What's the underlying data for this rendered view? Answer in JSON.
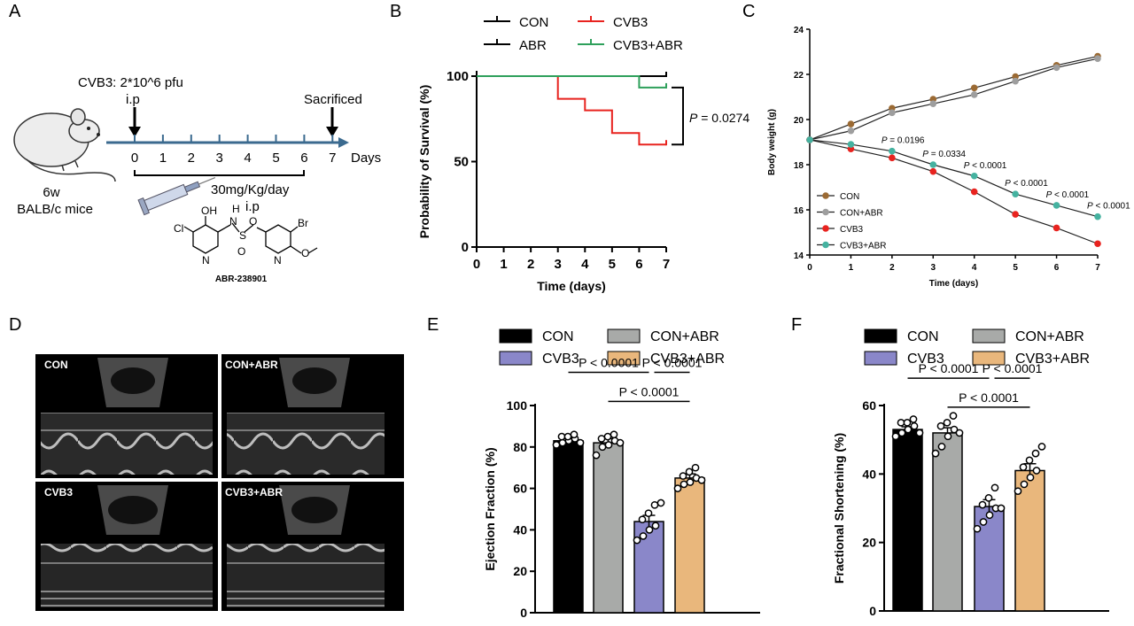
{
  "panel_labels": {
    "A": "A",
    "B": "B",
    "C": "C",
    "D": "D",
    "E": "E",
    "F": "F"
  },
  "panelA": {
    "infection": "CVB3: 2*10^6 pfu",
    "route1": "i.p",
    "sacrificed": "Sacrificed",
    "days_ticks": [
      "0",
      "1",
      "2",
      "3",
      "4",
      "5",
      "6",
      "7"
    ],
    "days_label": "Days",
    "dose": "30mg/Kg/day",
    "route2": "i.p",
    "mouse_age": "6w",
    "mouse_strain": "BALB/c mice",
    "compound_name": "ABR-238901",
    "chem": {
      "oh": "OH",
      "cl": "Cl",
      "n1": "N",
      "h": "H",
      "nh": "N",
      "s": "S",
      "o1": "O",
      "o2": "O",
      "br": "Br",
      "n2": "N",
      "o3": "O"
    }
  },
  "panelB": {
    "chart_data": {
      "type": "line",
      "xlabel": "Time (days)",
      "ylabel": "Probability of Survival (%)",
      "xlim": [
        0,
        7
      ],
      "ylim": [
        0,
        100
      ],
      "xticks": [
        "0",
        "1",
        "2",
        "3",
        "4",
        "5",
        "6",
        "7"
      ],
      "yticks": [
        "0",
        "50",
        "100"
      ],
      "legend": [
        {
          "name": "CON",
          "color": "#000000"
        },
        {
          "name": "CVB3",
          "color": "#e8231f"
        },
        {
          "name": "ABR",
          "color": "#000000"
        },
        {
          "name": "CVB3+ABR",
          "color": "#2ea05b"
        }
      ],
      "series": [
        {
          "name": "CON",
          "color": "#000000",
          "steps": [
            [
              0,
              100
            ],
            [
              7,
              100
            ]
          ]
        },
        {
          "name": "ABR",
          "color": "#000000",
          "steps": [
            [
              0,
              100
            ],
            [
              7,
              100
            ]
          ]
        },
        {
          "name": "CVB3",
          "color": "#e8231f",
          "steps": [
            [
              0,
              100
            ],
            [
              3,
              86.7
            ],
            [
              4,
              80
            ],
            [
              5,
              66.7
            ],
            [
              6,
              60
            ],
            [
              7,
              60
            ]
          ]
        },
        {
          "name": "CVB3+ABR",
          "color": "#2ea05b",
          "steps": [
            [
              0,
              100
            ],
            [
              6,
              93.3
            ],
            [
              7,
              93.3
            ]
          ]
        }
      ],
      "annotation": {
        "p_italic": "P",
        "p_rest": " = 0.0274"
      }
    }
  },
  "panelC": {
    "chart_data": {
      "type": "line",
      "xlabel": "Time (days)",
      "ylabel": "Body weight (g)",
      "xlim": [
        0,
        7
      ],
      "ylim": [
        14,
        24
      ],
      "xticks": [
        "0",
        "1",
        "2",
        "3",
        "4",
        "5",
        "6",
        "7"
      ],
      "yticks": [
        "14",
        "16",
        "18",
        "20",
        "22",
        "24"
      ],
      "x": [
        0,
        1,
        2,
        3,
        4,
        5,
        6,
        7
      ],
      "series": [
        {
          "name": "CON",
          "color": "#9b6a33",
          "values": [
            19.1,
            19.8,
            20.5,
            20.9,
            21.4,
            21.9,
            22.4,
            22.8
          ]
        },
        {
          "name": "CON+ABR",
          "color": "#9e9e9e",
          "values": [
            19.1,
            19.5,
            20.3,
            20.7,
            21.1,
            21.7,
            22.3,
            22.7
          ]
        },
        {
          "name": "CVB3",
          "color": "#e8231f",
          "values": [
            19.1,
            18.7,
            18.3,
            17.7,
            16.8,
            15.8,
            15.2,
            14.5
          ]
        },
        {
          "name": "CVB3+ABR",
          "color": "#45b2a0",
          "values": [
            19.1,
            18.9,
            18.6,
            18.0,
            17.5,
            16.7,
            16.2,
            15.7
          ]
        }
      ],
      "annotations": [
        {
          "x": 2,
          "italic": "P",
          "rest": " = 0.0196"
        },
        {
          "x": 3,
          "italic": "P",
          "rest": " = 0.0334"
        },
        {
          "x": 4,
          "italic": "P",
          "rest": " < 0.0001"
        },
        {
          "x": 5,
          "italic": "P",
          "rest": " < 0.0001"
        },
        {
          "x": 6,
          "italic": "P",
          "rest": " < 0.0001"
        },
        {
          "x": 7,
          "italic": "P",
          "rest": " < 0.0001"
        }
      ]
    }
  },
  "panelD": {
    "labels": [
      "CON",
      "CON+ABR",
      "CVB3",
      "CVB3+ABR"
    ]
  },
  "panelE": {
    "chart_data": {
      "type": "bar",
      "categories": [
        "CON",
        "CON+ABR",
        "CVB3",
        "CVB3+ABR"
      ],
      "values": [
        83,
        82,
        44,
        65
      ],
      "errors": [
        1,
        2,
        3,
        2
      ],
      "points": [
        [
          81,
          82,
          83,
          84,
          85,
          85,
          86,
          82
        ],
        [
          76,
          80,
          81,
          83,
          84,
          85,
          86,
          82
        ],
        [
          35,
          37,
          40,
          42,
          45,
          48,
          52,
          53
        ],
        [
          60,
          62,
          63,
          65,
          66,
          68,
          70,
          64
        ]
      ],
      "colors": [
        "#000000",
        "#a8aaa8",
        "#8a87c9",
        "#e9b77c"
      ],
      "ylabel": "Ejection Fraction (%)",
      "ylim": [
        0,
        100
      ],
      "yticks": [
        "0",
        "20",
        "40",
        "60",
        "80",
        "100"
      ],
      "comparisons": [
        {
          "from": 0,
          "to": 2,
          "level": 116,
          "label": "P < 0.0001"
        },
        {
          "from": 2,
          "to": 3,
          "level": 116,
          "label": "P < 0.0001"
        },
        {
          "from": 1,
          "to": 3,
          "level": 102,
          "label": "P < 0.0001"
        }
      ]
    }
  },
  "panelF": {
    "chart_data": {
      "type": "bar",
      "categories": [
        "CON",
        "CON+ABR",
        "CVB3",
        "CVB3+ABR"
      ],
      "values": [
        53,
        52,
        30.5,
        41
      ],
      "errors": [
        0.8,
        1.5,
        2,
        2
      ],
      "points": [
        [
          51,
          52,
          53,
          54,
          55,
          55,
          56,
          52
        ],
        [
          46,
          48,
          51,
          53,
          54,
          55,
          57,
          52
        ],
        [
          24,
          26,
          28,
          30,
          31,
          33,
          36,
          30
        ],
        [
          35,
          37,
          39,
          41,
          42,
          44,
          46,
          48
        ]
      ],
      "colors": [
        "#000000",
        "#a8aaa8",
        "#8a87c9",
        "#e9b77c"
      ],
      "ylabel": "Fractional Shortening (%)",
      "ylim": [
        0,
        60
      ],
      "yticks": [
        "0",
        "20",
        "40",
        "60"
      ],
      "comparisons": [
        {
          "from": 0,
          "to": 2,
          "level": 68,
          "label": "P < 0.0001"
        },
        {
          "from": 2,
          "to": 3,
          "level": 68,
          "label": "P < 0.0001"
        },
        {
          "from": 1,
          "to": 3,
          "level": 59.5,
          "label": "P < 0.0001"
        }
      ]
    }
  },
  "colors": {
    "axis": "#000000",
    "timeline": "#3b6a8f"
  }
}
